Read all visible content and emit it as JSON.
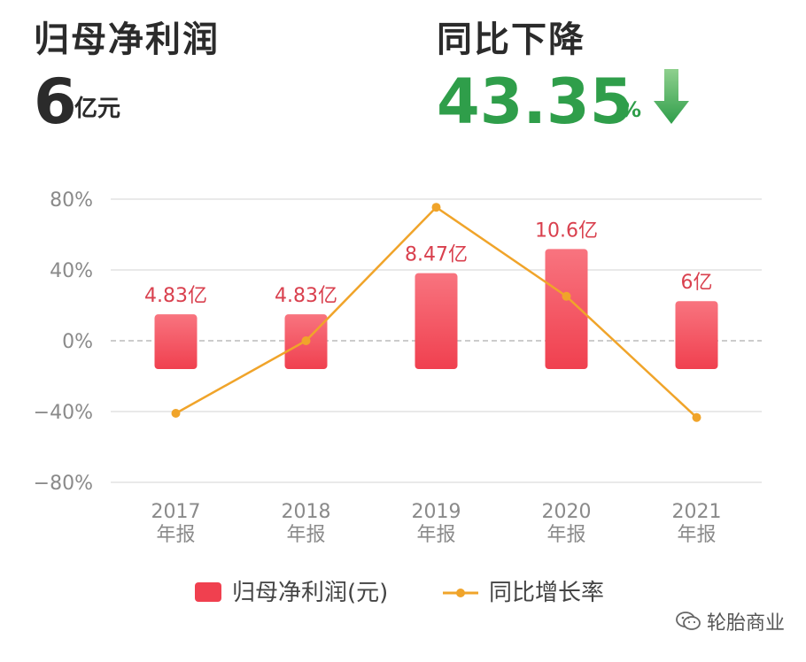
{
  "kpi_left": {
    "title": "归母净利润",
    "value": "6",
    "unit": "亿元"
  },
  "kpi_right": {
    "title": "同比下降",
    "value": "43.35",
    "unit": "%",
    "arrow_icon": "arrow-down-icon"
  },
  "watermark": {
    "text": "轮胎商业",
    "icon": "wechat-icon"
  },
  "colors": {
    "bar": "#f0404f",
    "bar_light": "#f8747f",
    "bar_label": "#d9404e",
    "line": "#f0a42a",
    "green": "#2f9e4a",
    "axis_text": "#8a8a8a",
    "grid": "#e2e2e2",
    "zero_line": "#bbbbbb"
  },
  "chart_data": {
    "type": "bar",
    "categories": [
      "2017\n年报",
      "2018\n年报",
      "2019\n年报",
      "2020\n年报",
      "2021\n年报"
    ],
    "series": [
      {
        "name": "归母净利润(元)",
        "type": "bar",
        "axis": "left",
        "values": [
          4.83,
          4.83,
          8.47,
          10.6,
          6
        ],
        "labels": [
          "4.83亿",
          "4.83亿",
          "8.47亿",
          "10.6亿",
          "6亿"
        ]
      },
      {
        "name": "同比增长率",
        "type": "line",
        "axis": "right",
        "values": [
          -41,
          0,
          75.4,
          25.1,
          -43.35
        ]
      }
    ],
    "ylim": [
      -80,
      80
    ],
    "yticks": [
      80,
      40,
      0,
      -40,
      -80
    ],
    "ytick_labels": [
      "80%",
      "40%",
      "0%",
      "−40%",
      "−80%"
    ],
    "bar_ylim": [
      -10,
      15
    ],
    "grid": true,
    "legend_position": "bottom"
  }
}
